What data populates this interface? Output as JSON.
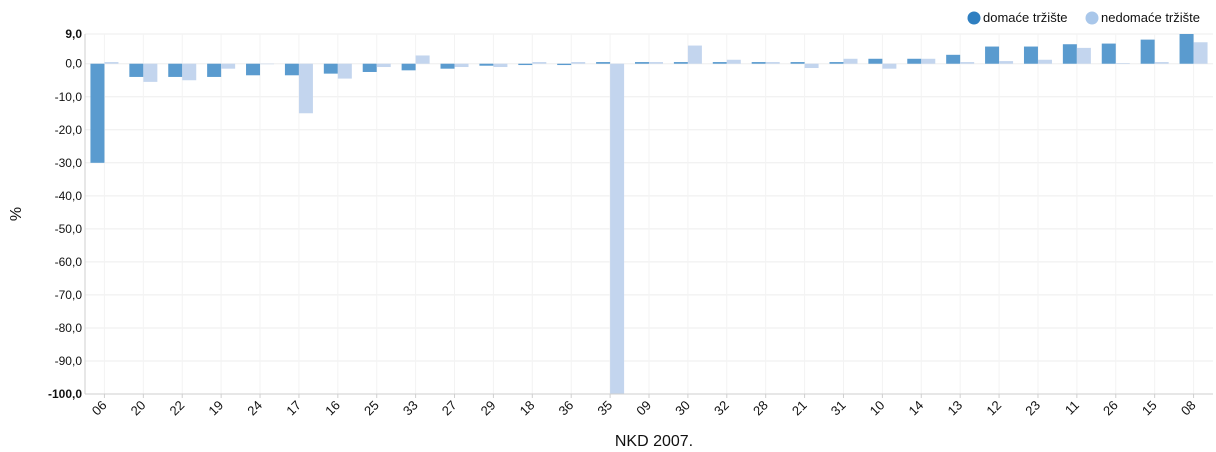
{
  "chart_data": {
    "type": "bar",
    "xlabel": "NKD 2007.",
    "ylabel": "%",
    "ylim": [
      -100,
      9
    ],
    "yticks": [
      "9,0",
      "0,0",
      "-10,0",
      "-20,0",
      "-30,0",
      "-40,0",
      "-50,0",
      "-60,0",
      "-70,0",
      "-80,0",
      "-90,0",
      "-100,0"
    ],
    "ytick_values": [
      9,
      0,
      -10,
      -20,
      -30,
      -40,
      -50,
      -60,
      -70,
      -80,
      -90,
      -100
    ],
    "grid": true,
    "legend_position": "top-right",
    "categories": [
      "06",
      "20",
      "22",
      "19",
      "24",
      "17",
      "16",
      "25",
      "33",
      "27",
      "29",
      "18",
      "36",
      "35",
      "09",
      "30",
      "32",
      "28",
      "21",
      "31",
      "10",
      "14",
      "13",
      "12",
      "23",
      "11",
      "26",
      "15",
      "08"
    ],
    "series": [
      {
        "name": "domaće tržište",
        "color": "#5a9bcf",
        "legend_color": "#2f7fc1",
        "values": [
          -30.0,
          -4.0,
          -4.0,
          -4.0,
          -3.5,
          -3.5,
          -3.0,
          -2.5,
          -2.0,
          -1.5,
          -0.6,
          -0.4,
          -0.4,
          0.5,
          0.5,
          0.5,
          0.5,
          0.5,
          0.5,
          0.5,
          1.5,
          1.5,
          2.7,
          5.2,
          5.2,
          5.9,
          6.1,
          7.3,
          9.0
        ]
      },
      {
        "name": "nedomaće tržište",
        "color": "#c3d5ee",
        "legend_color": "#a9c7ea",
        "values": [
          0.5,
          -5.5,
          -5.0,
          -1.5,
          0.0,
          -15.0,
          -4.5,
          -1.0,
          2.5,
          -1.0,
          -1.0,
          0.5,
          0.5,
          -100.0,
          0.5,
          5.5,
          1.2,
          0.5,
          -1.3,
          1.5,
          -1.5,
          1.5,
          0.5,
          0.8,
          1.2,
          4.8,
          0.2,
          0.5,
          6.5
        ]
      }
    ]
  }
}
